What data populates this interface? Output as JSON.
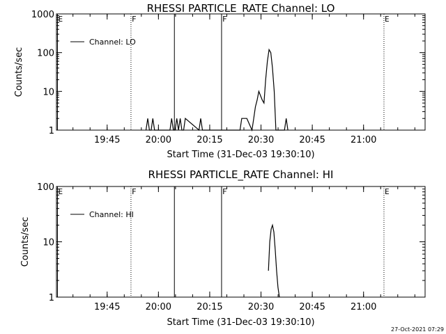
{
  "chart_data": [
    {
      "type": "line",
      "title": "RHESSI PARTICLE_RATE Channel: LO",
      "xlabel": "Start Time (31-Dec-03 19:30:10)",
      "ylabel": "Counts/sec",
      "y_scale": "log",
      "ylim": [
        1,
        1000
      ],
      "xlim": [
        "19:30:10",
        "21:18:00"
      ],
      "x_unit": "minutes past 19:30:10",
      "xticks": [
        "19:45",
        "20:00",
        "20:15",
        "20:30",
        "20:45",
        "21:00"
      ],
      "yticks": [
        "1",
        "10",
        "100",
        "1000"
      ],
      "legend": {
        "position": "top-left",
        "entries": [
          "Channel: LO"
        ]
      },
      "grid": false,
      "series": [
        {
          "name": "Channel: LO",
          "x": [
            26.2,
            26.7,
            27.2,
            27.7,
            28.2,
            28.7,
            29.2,
            33.2,
            33.7,
            34.2,
            34.7,
            35.2,
            35.7,
            36.2,
            36.7,
            37.2,
            37.7,
            41.7,
            42.2,
            42.7,
            53.7,
            54.2,
            54.7,
            55.2,
            55.7,
            57.2,
            57.7,
            58.2,
            58.7,
            59.2,
            60.2,
            60.7,
            61.2,
            61.7,
            62.2,
            62.7,
            63.2,
            63.7,
            64.2,
            64.7,
            65.2,
            66.7,
            67.2,
            67.7
          ],
          "y": [
            1,
            2,
            1,
            1,
            2,
            1,
            1,
            1,
            2,
            1,
            1,
            2,
            1,
            2,
            1,
            1,
            2,
            1,
            2,
            1,
            1,
            2,
            2,
            2,
            2,
            1,
            2,
            4,
            6,
            10,
            6,
            5,
            20,
            60,
            120,
            100,
            40,
            10,
            1,
            1,
            1,
            1,
            2,
            1
          ]
        }
      ],
      "markers": [
        {
          "label": "E",
          "x": 0.3,
          "style": "solid"
        },
        {
          "label": "F",
          "x": 21.8,
          "style": "dotted"
        },
        {
          "label": "",
          "x": 34.5,
          "style": "solid"
        },
        {
          "label": "F",
          "x": 48.3,
          "style": "solid"
        },
        {
          "label": "E",
          "x": 95.8,
          "style": "dotted"
        },
        {
          "label": "",
          "x": 117.3,
          "style": "dotted"
        }
      ]
    },
    {
      "type": "line",
      "title": "RHESSI PARTICLE_RATE Channel: HI",
      "xlabel": "Start Time (31-Dec-03 19:30:10)",
      "ylabel": "Counts/sec",
      "y_scale": "log",
      "ylim": [
        1,
        100
      ],
      "xlim": [
        "19:30:10",
        "21:18:00"
      ],
      "x_unit": "minutes past 19:30:10",
      "xticks": [
        "19:45",
        "20:00",
        "20:15",
        "20:30",
        "20:45",
        "21:00"
      ],
      "yticks": [
        "1",
        "10",
        "100"
      ],
      "legend": {
        "position": "top-left",
        "entries": [
          "Channel: HI"
        ]
      },
      "grid": false,
      "series": [
        {
          "name": "Channel: HI",
          "x": [
            62.0,
            62.4,
            62.8,
            63.2,
            63.6,
            64.0,
            64.4,
            64.8,
            65.2
          ],
          "y": [
            3,
            10,
            17,
            20,
            15,
            7,
            3,
            1.5,
            1
          ]
        }
      ],
      "markers": [
        {
          "label": "E",
          "x": 0.3,
          "style": "solid"
        },
        {
          "label": "F",
          "x": 21.8,
          "style": "dotted"
        },
        {
          "label": "",
          "x": 34.5,
          "style": "solid"
        },
        {
          "label": "F",
          "x": 48.3,
          "style": "solid"
        },
        {
          "label": "E",
          "x": 95.8,
          "style": "dotted"
        },
        {
          "label": "",
          "x": 117.3,
          "style": "dotted"
        }
      ]
    }
  ],
  "footer": {
    "timestamp": "27-Oct-2021 07:29"
  }
}
